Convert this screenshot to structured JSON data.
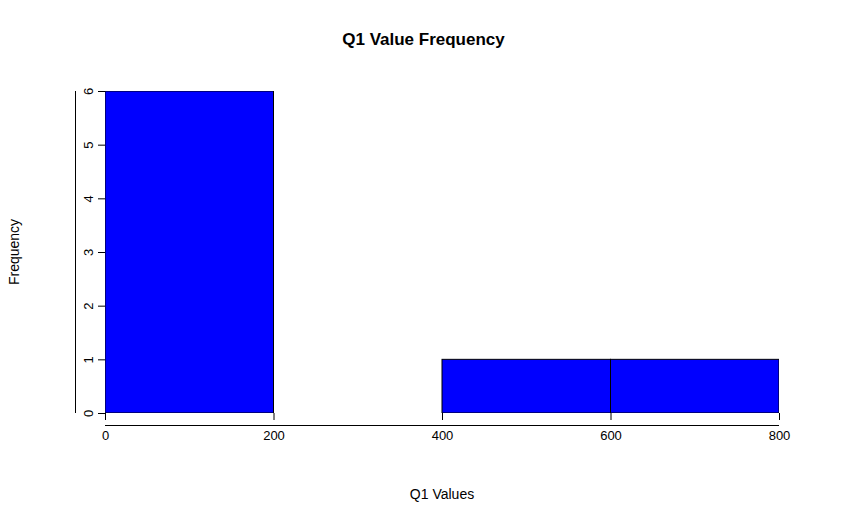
{
  "chart_data": {
    "type": "histogram",
    "title": "Q1 Value Frequency",
    "x_label": "Q1 Values",
    "y_label": "Frequency",
    "bins": [
      0,
      200,
      400,
      600,
      800
    ],
    "values": [
      6,
      0,
      1,
      1
    ],
    "color": "#0000ff",
    "xlim": [
      0,
      800
    ],
    "xticks": [
      0,
      200,
      400,
      600,
      800
    ],
    "ylim": [
      0,
      6
    ],
    "yticks": [
      0,
      1,
      2,
      3,
      4,
      5,
      6
    ],
    "grid": false
  }
}
